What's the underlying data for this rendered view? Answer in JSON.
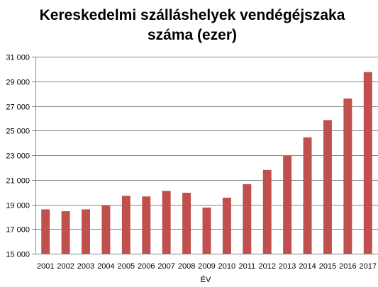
{
  "chart_data": {
    "type": "bar",
    "title_lines": [
      "Kereskedelmi szálláshelyek vendégéjszaka",
      "száma (ezer)"
    ],
    "xlabel": "ÉV",
    "ylabel": "",
    "categories": [
      "2001",
      "2002",
      "2003",
      "2004",
      "2005",
      "2006",
      "2007",
      "2008",
      "2009",
      "2010",
      "2011",
      "2012",
      "2013",
      "2014",
      "2015",
      "2016",
      "2017"
    ],
    "values": [
      18600,
      18450,
      18600,
      18900,
      19700,
      19650,
      20100,
      19950,
      18750,
      19550,
      20650,
      21800,
      22950,
      24450,
      25850,
      27600,
      29750
    ],
    "ylim": [
      15000,
      31000
    ],
    "yticks": [
      15000,
      17000,
      19000,
      21000,
      23000,
      25000,
      27000,
      29000,
      31000
    ],
    "ytick_labels": [
      "15 000",
      "17 000",
      "19 000",
      "21 000",
      "23 000",
      "25 000",
      "27 000",
      "29 000",
      "31 000"
    ],
    "grid": true,
    "legend": "none",
    "bar_color": "#c0504d",
    "grid_color": "#868686",
    "axis_color": "#868686"
  }
}
